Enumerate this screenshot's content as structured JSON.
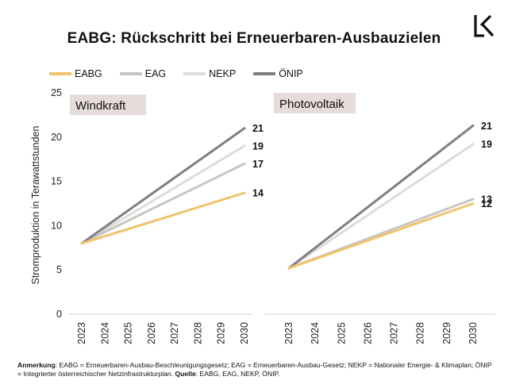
{
  "header": {
    "title": "EABG: Rückschritt bei Erneuerbaren-Ausbauzielen",
    "logo_icon": "k-logo-icon"
  },
  "legend": [
    {
      "name": "EABG",
      "color": "#F0C36D"
    },
    {
      "name": "EAG",
      "color": "#C9C5C0"
    },
    {
      "name": "NEKP",
      "color": "#DCDCDC"
    },
    {
      "name": "ÖNIP",
      "color": "#808080"
    }
  ],
  "chart_data": [
    {
      "type": "line",
      "title": "Windkraft",
      "ylabel": "Stromproduktion in Terawattstunden",
      "xlabel": "",
      "ylim": [
        0,
        25
      ],
      "yticks": [
        "0",
        "5",
        "10",
        "15",
        "20",
        "25"
      ],
      "categories": [
        "2023",
        "2024",
        "2025",
        "2026",
        "2027",
        "2028",
        "2029",
        "2030"
      ],
      "series": [
        {
          "name": "EABG",
          "start": 8,
          "end": 13.7,
          "label": "14"
        },
        {
          "name": "EAG",
          "start": 8,
          "end": 17,
          "label": "17"
        },
        {
          "name": "NEKP",
          "start": 8,
          "end": 19,
          "label": "19"
        },
        {
          "name": "ÖNIP",
          "start": 8,
          "end": 21,
          "label": "21"
        }
      ]
    },
    {
      "type": "line",
      "title": "Photovoltaik",
      "ylabel": "",
      "xlabel": "",
      "ylim": [
        0,
        25
      ],
      "categories": [
        "2023",
        "2024",
        "2025",
        "2026",
        "2027",
        "2028",
        "2029",
        "2030"
      ],
      "series": [
        {
          "name": "EABG",
          "start": 5.2,
          "end": 12.5,
          "label": "12"
        },
        {
          "name": "EAG",
          "start": 5.2,
          "end": 13,
          "label": "13"
        },
        {
          "name": "NEKP",
          "start": 5.2,
          "end": 19.2,
          "label": "19"
        },
        {
          "name": "ÖNIP",
          "start": 5.2,
          "end": 21.3,
          "label": "21"
        }
      ]
    }
  ],
  "footer": {
    "note_label": "Anmerkung",
    "note_text": ": EABG = Erneuerbaren-Ausbau-Beschleunigungsgesetz; EAG = Erneuerbaren-Ausbau-Gesetz; NEKP = Nationaler Energie- & Klimaplan; ÖNIP = Integrierter österreichischer Netzinfrastrukturplan. ",
    "source_label": "Quelle",
    "source_text": ": EABG, EAG, NEKP, ÖNIP."
  }
}
